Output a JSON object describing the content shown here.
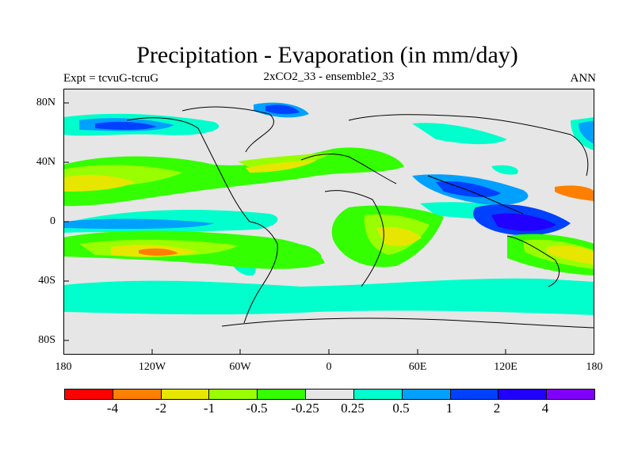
{
  "figure": {
    "title": "Precipitation - Evaporation (in mm/day)",
    "left_label": "Expt = tcvuG-tcruG",
    "center_label": "2xCO2_33 - ensemble2_33",
    "right_label": "ANN"
  },
  "axes": {
    "lon_ticks": [
      "180",
      "120W",
      "60W",
      "0",
      "60E",
      "120E",
      "180"
    ],
    "lat_ticks": [
      "80N",
      "40N",
      "0",
      "40S",
      "80S"
    ]
  },
  "colorbar": {
    "colors": [
      "#ff0000",
      "#ff7f00",
      "#e6e600",
      "#99ff00",
      "#33ff00",
      "#e6e6e6",
      "#00ffcc",
      "#00a0ff",
      "#0040ff",
      "#2000ff",
      "#8000ff"
    ],
    "labels": [
      "-4",
      "-2",
      "-1",
      "-0.5",
      "-0.25",
      "0.25",
      "0.5",
      "1",
      "2",
      "4"
    ]
  },
  "map": {
    "background": "#e6e6e6"
  }
}
